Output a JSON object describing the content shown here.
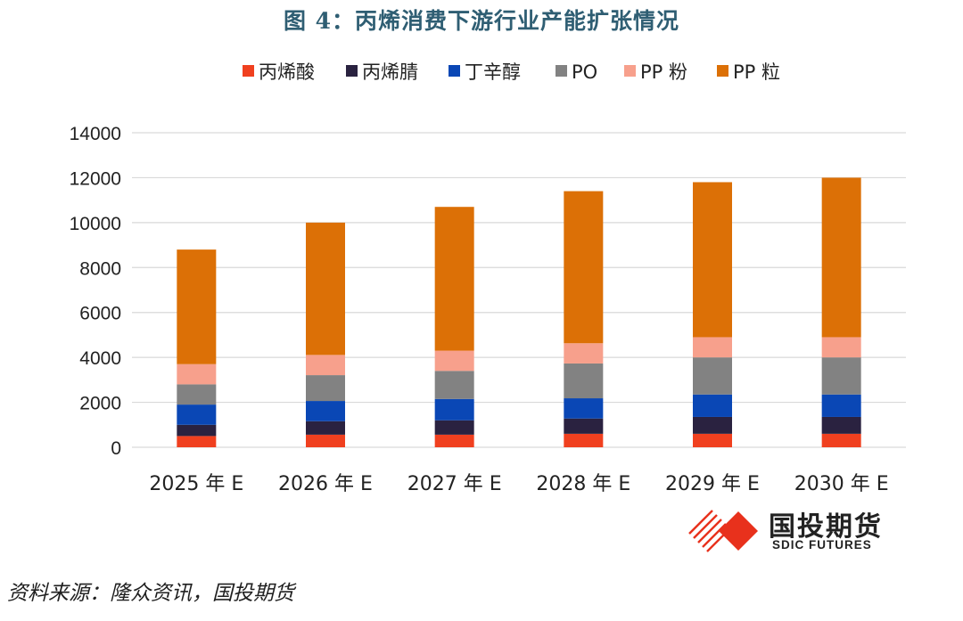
{
  "title": "图 4：丙烯消费下游行业产能扩张情况",
  "source": "资料来源：隆众资讯，国投期货",
  "logo": {
    "name_cn": "国投期货",
    "name_en": "SDIC FUTURES"
  },
  "chart_data": {
    "type": "bar",
    "stacked": true,
    "categories": [
      "2025 年 E",
      "2026 年 E",
      "2027 年 E",
      "2028 年 E",
      "2029 年 E",
      "2030 年 E"
    ],
    "ylim": [
      0,
      14000
    ],
    "yticks": [
      0,
      2000,
      4000,
      6000,
      8000,
      10000,
      12000,
      14000
    ],
    "grid": true,
    "legend_position": "top",
    "series": [
      {
        "name": "丙烯酸",
        "color": "#f0401f",
        "values": [
          500,
          560,
          560,
          600,
          600,
          600
        ]
      },
      {
        "name": "丙烯腈",
        "color": "#2a2240",
        "values": [
          500,
          600,
          640,
          680,
          750,
          750
        ]
      },
      {
        "name": "丁辛醇",
        "color": "#0a47b5",
        "values": [
          900,
          900,
          950,
          900,
          1000,
          1000
        ]
      },
      {
        "name": "PO",
        "color": "#828282",
        "values": [
          900,
          1150,
          1250,
          1550,
          1650,
          1650
        ]
      },
      {
        "name": "PP 粉",
        "color": "#f7a08c",
        "values": [
          900,
          900,
          900,
          900,
          900,
          900
        ]
      },
      {
        "name": "PP 粒",
        "color": "#dc7006",
        "values": [
          5100,
          5890,
          6400,
          6770,
          6900,
          7100
        ]
      }
    ]
  }
}
